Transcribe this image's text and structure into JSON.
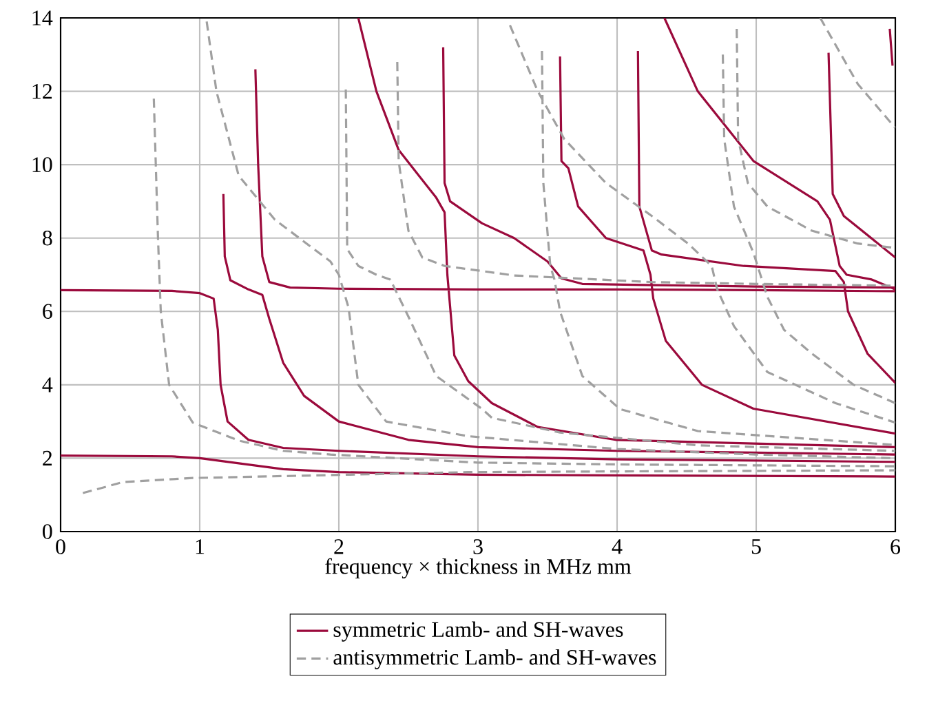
{
  "chart_data": {
    "type": "line",
    "xlabel": "frequency × thickness in MHz mm",
    "xlim": [
      0,
      6
    ],
    "ylim": [
      0,
      14
    ],
    "xticks": [
      0,
      1,
      2,
      3,
      4,
      5,
      6
    ],
    "yticks": [
      0,
      2,
      4,
      6,
      8,
      10,
      12,
      14
    ],
    "grid": true,
    "legend": "bottom",
    "series": [
      {
        "name": "symmetric Lamb- and SH-waves",
        "color": "#9b0a3c",
        "line_style": "solid",
        "x": [
          0,
          0.8,
          1,
          1.3,
          1.6,
          2,
          3,
          4,
          6,
          null,
          0,
          0.8,
          1.0,
          1.1,
          1.13,
          1.15,
          1.2,
          1.35,
          1.6,
          2,
          3,
          4,
          6,
          null,
          1.17,
          1.18,
          1.22,
          1.35,
          1.45,
          1.5,
          1.6,
          1.75,
          2,
          2.5,
          3,
          4,
          5,
          6,
          null,
          1.4,
          1.42,
          1.45,
          1.5,
          1.65,
          2,
          3,
          4,
          5,
          6,
          null,
          2.14,
          2.27,
          2.43,
          2.7,
          2.76,
          2.78,
          2.83,
          2.93,
          3.1,
          3.43,
          3.99,
          4.98,
          6,
          null,
          2.75,
          2.76,
          2.8,
          3.03,
          3.26,
          3.5,
          3.6,
          3.75,
          4.2,
          5,
          6,
          null,
          3.59,
          3.6,
          3.65,
          3.72,
          3.92,
          4.19,
          4.24,
          4.26,
          4.35,
          4.61,
          4.98,
          6,
          null,
          4.15,
          4.16,
          4.25,
          4.32,
          4.91,
          5.57,
          5.63,
          5.66,
          5.8,
          6,
          null,
          4.34,
          4.58,
          4.98,
          5.44,
          5.53,
          5.6,
          5.65,
          5.83,
          6,
          null,
          5.52,
          5.55,
          5.63,
          6,
          null,
          5.96,
          5.98
        ],
        "values": [
          2.07,
          2.05,
          2.0,
          1.85,
          1.7,
          1.62,
          1.55,
          1.53,
          1.5,
          null,
          6.58,
          6.56,
          6.5,
          6.35,
          5.5,
          4,
          3,
          2.5,
          2.28,
          2.2,
          2.05,
          1.97,
          1.9,
          null,
          9.2,
          7.5,
          6.85,
          6.6,
          6.45,
          5.8,
          4.6,
          3.7,
          3.0,
          2.5,
          2.3,
          2.2,
          2.15,
          2.1,
          null,
          12.6,
          10,
          7.5,
          6.8,
          6.65,
          6.62,
          6.6,
          6.6,
          6.58,
          6.55,
          null,
          14,
          12,
          10.4,
          9.1,
          8.7,
          7.0,
          4.8,
          4.1,
          3.5,
          2.85,
          2.5,
          2.4,
          2.3,
          null,
          13.2,
          9.5,
          9.0,
          8.4,
          8.0,
          7.36,
          6.9,
          6.75,
          6.72,
          6.68,
          6.65,
          null,
          12.95,
          10.1,
          9.9,
          8.86,
          8.0,
          7.66,
          7.0,
          6.35,
          5.2,
          4.0,
          3.35,
          2.67,
          null,
          13.1,
          8.86,
          7.66,
          7.55,
          7.24,
          7.1,
          6.8,
          6.0,
          4.85,
          4.05,
          null,
          14,
          12,
          10.1,
          9.0,
          8.5,
          7.24,
          7.0,
          6.87,
          6.6,
          null,
          13.05,
          9.2,
          8.6,
          7.47,
          null,
          13.7,
          12.7
        ]
      },
      {
        "name": "antisymmetric Lamb- and SH-waves",
        "color": "#a0a0a0",
        "line_style": "dashed",
        "x": [
          0.16,
          0.45,
          0.95,
          2.93,
          4,
          6,
          null,
          0.67,
          0.7,
          0.72,
          0.78,
          0.95,
          1.28,
          1.6,
          1.94,
          3,
          4,
          6,
          null,
          1.05,
          1.12,
          1.28,
          1.54,
          1.94,
          2.0,
          2.07,
          2.14,
          2.34,
          2.93,
          4,
          5,
          6,
          null,
          2.05,
          2.06,
          2.14,
          2.27,
          2.37,
          2.5,
          2.7,
          3.03,
          3.1,
          3.59,
          4.58,
          6,
          null,
          2.42,
          2.43,
          2.5,
          2.6,
          2.76,
          3.03,
          3.26,
          4.25,
          5,
          6,
          null,
          3.23,
          3.43,
          3.62,
          3.92,
          4.25,
          4.51,
          4.68,
          4.72,
          4.84,
          5.08,
          5.57,
          6,
          null,
          3.46,
          3.47,
          3.52,
          3.55,
          3.59,
          3.75,
          4.02,
          4.58,
          6,
          null,
          4.76,
          4.77,
          4.84,
          4.98,
          5.03,
          5.08,
          5.2,
          5.4,
          5.7,
          6,
          null,
          4.86,
          4.87,
          4.94,
          5.08,
          5.4,
          5.73,
          6,
          null,
          5.46,
          5.73,
          6
        ],
        "values": [
          1.05,
          1.35,
          1.46,
          1.62,
          1.64,
          1.67,
          null,
          11.8,
          8,
          6,
          4.0,
          2.97,
          2.48,
          2.2,
          2.1,
          1.88,
          1.83,
          1.78,
          null,
          13.9,
          12,
          9.7,
          8.5,
          7.36,
          7.0,
          6.1,
          4.0,
          3.0,
          2.6,
          2.25,
          2.1,
          2.0,
          null,
          12.05,
          7.7,
          7.24,
          7.0,
          6.87,
          5.86,
          4.24,
          3.34,
          3.1,
          2.7,
          2.35,
          2.2,
          null,
          12.8,
          10.1,
          8.2,
          7.47,
          7.24,
          7.1,
          6.98,
          6.8,
          6.75,
          6.7,
          null,
          13.8,
          12,
          10.7,
          9.5,
          8.6,
          7.85,
          7.24,
          6.6,
          5.6,
          4.35,
          3.5,
          2.97,
          null,
          13.1,
          9.5,
          7.24,
          6.87,
          6.0,
          4.24,
          3.34,
          2.74,
          2.36,
          null,
          13.0,
          10.7,
          8.86,
          7.6,
          7.0,
          6.4,
          5.5,
          4.85,
          4.0,
          3.5,
          null,
          13.7,
          10.7,
          9.5,
          8.86,
          8.2,
          7.85,
          7.73,
          null,
          14,
          12.2,
          11.0
        ]
      }
    ]
  }
}
